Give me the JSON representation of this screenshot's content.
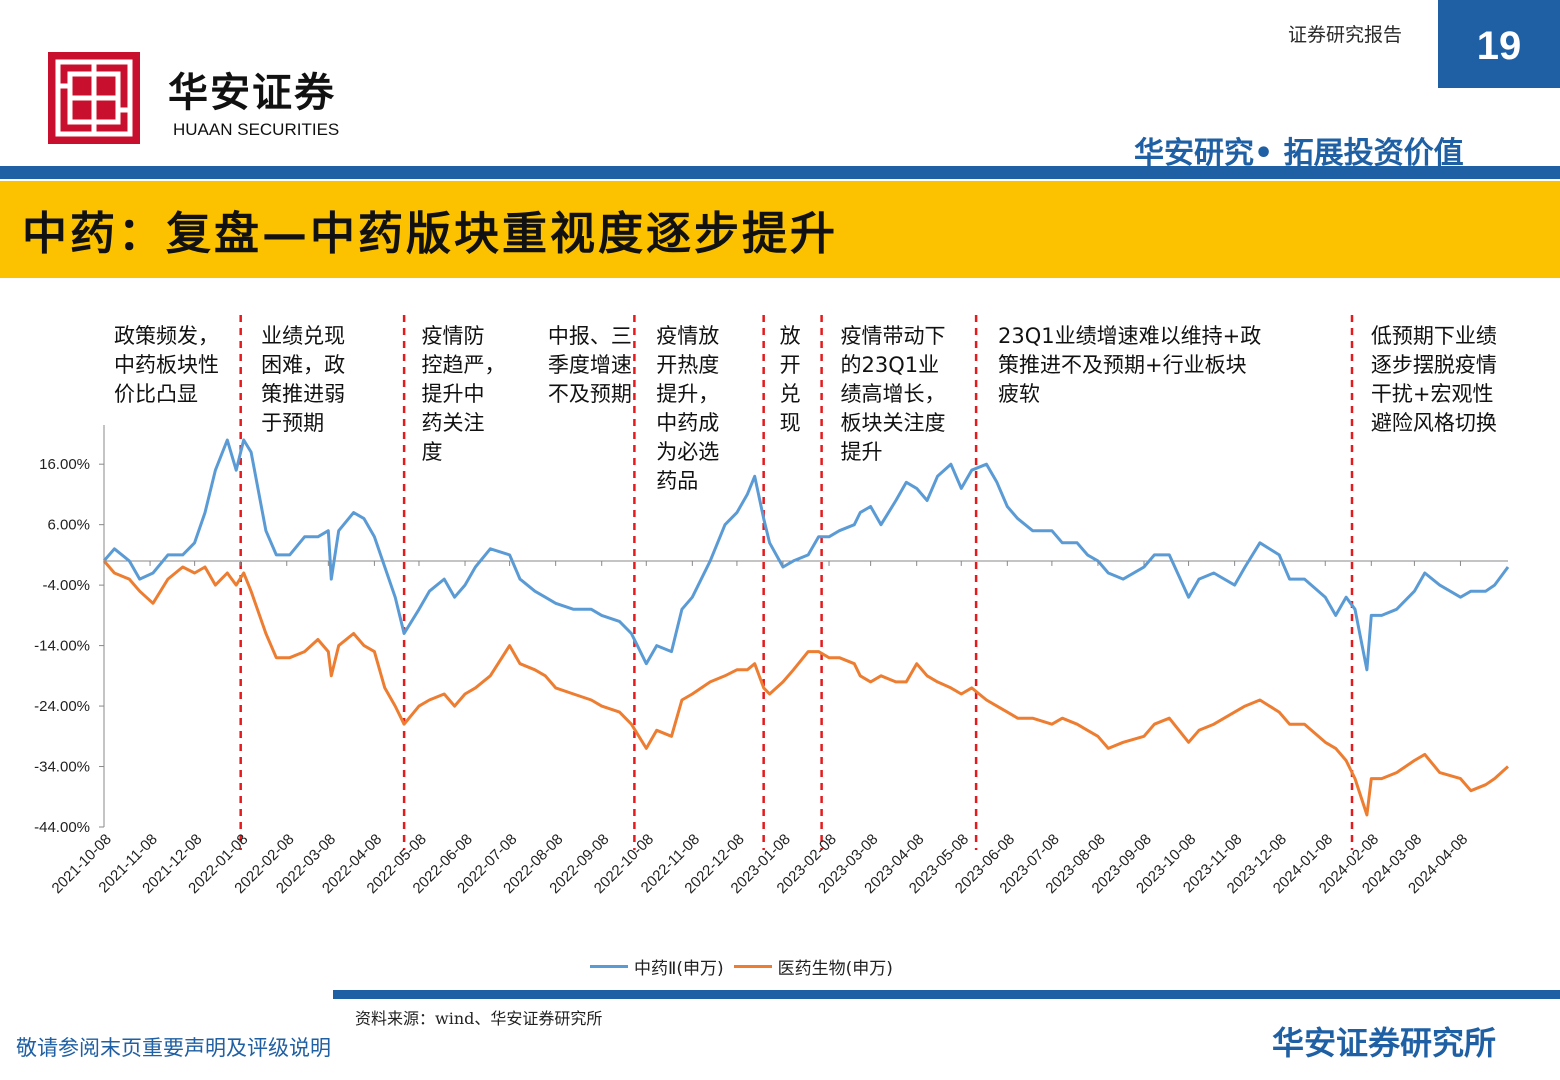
{
  "header": {
    "logo_cn": "华安证券",
    "logo_en": "HUAAN SECURITIES",
    "report_type": "证券研究报告",
    "page_number": "19",
    "slogan": "华安研究• 拓展投资价值",
    "brand_color": "#1f5fa3",
    "logo_color": "#c8102e",
    "title_bar_color": "#fcc200"
  },
  "page_title": "中药：复盘—中药版块重视度逐步提升",
  "footer": {
    "source": "资料来源：wind、华安证券研究所",
    "disclaimer": "敬请参阅末页重要声明及评级说明",
    "institute": "华安证券研究所"
  },
  "chart_data": {
    "type": "line",
    "ylim": [
      -44,
      20
    ],
    "y_ticks": [
      "16.00%",
      "6.00%",
      "-4.00%",
      "-14.00%",
      "-24.00%",
      "-34.00%",
      "-44.00%"
    ],
    "x_ticks": [
      "2021-10-08",
      "2021-11-08",
      "2021-12-08",
      "2022-01-08",
      "2022-02-08",
      "2022-03-08",
      "2022-04-08",
      "2022-05-08",
      "2022-06-08",
      "2022-07-08",
      "2022-08-08",
      "2022-09-08",
      "2022-10-08",
      "2022-11-08",
      "2022-12-08",
      "2023-01-08",
      "2023-02-08",
      "2023-03-08",
      "2023-04-08",
      "2023-05-08",
      "2023-06-08",
      "2023-07-08",
      "2023-08-08",
      "2023-09-08",
      "2023-10-08",
      "2023-11-08",
      "2023-12-08",
      "2024-01-08",
      "2024-02-08",
      "2024-03-08",
      "2024-04-08"
    ],
    "x_range": [
      "2021-10-08",
      "2024-05-10"
    ],
    "series": [
      {
        "name": "中药Ⅱ(申万)",
        "color": "#5b9bd5",
        "points": [
          [
            "2021-10-08",
            0
          ],
          [
            "2021-10-15",
            2
          ],
          [
            "2021-10-25",
            0
          ],
          [
            "2021-11-01",
            -3
          ],
          [
            "2021-11-10",
            -2
          ],
          [
            "2021-11-20",
            1
          ],
          [
            "2021-11-30",
            1
          ],
          [
            "2021-12-08",
            3
          ],
          [
            "2021-12-15",
            8
          ],
          [
            "2021-12-22",
            15
          ],
          [
            "2021-12-30",
            20
          ],
          [
            "2022-01-05",
            15
          ],
          [
            "2022-01-10",
            20
          ],
          [
            "2022-01-15",
            18
          ],
          [
            "2022-01-25",
            5
          ],
          [
            "2022-02-01",
            1
          ],
          [
            "2022-02-10",
            1
          ],
          [
            "2022-02-20",
            4
          ],
          [
            "2022-03-01",
            4
          ],
          [
            "2022-03-08",
            5
          ],
          [
            "2022-03-10",
            -3
          ],
          [
            "2022-03-15",
            5
          ],
          [
            "2022-03-25",
            8
          ],
          [
            "2022-04-01",
            7
          ],
          [
            "2022-04-08",
            4
          ],
          [
            "2022-04-15",
            -1
          ],
          [
            "2022-04-22",
            -6
          ],
          [
            "2022-04-28",
            -12
          ],
          [
            "2022-05-08",
            -8
          ],
          [
            "2022-05-15",
            -5
          ],
          [
            "2022-05-25",
            -3
          ],
          [
            "2022-06-01",
            -6
          ],
          [
            "2022-06-08",
            -4
          ],
          [
            "2022-06-15",
            -1
          ],
          [
            "2022-06-25",
            2
          ],
          [
            "2022-07-08",
            1
          ],
          [
            "2022-07-15",
            -3
          ],
          [
            "2022-07-25",
            -5
          ],
          [
            "2022-08-01",
            -6
          ],
          [
            "2022-08-08",
            -7
          ],
          [
            "2022-08-20",
            -8
          ],
          [
            "2022-09-01",
            -8
          ],
          [
            "2022-09-08",
            -9
          ],
          [
            "2022-09-20",
            -10
          ],
          [
            "2022-09-28",
            -12
          ],
          [
            "2022-10-08",
            -17
          ],
          [
            "2022-10-15",
            -14
          ],
          [
            "2022-10-25",
            -15
          ],
          [
            "2022-11-01",
            -8
          ],
          [
            "2022-11-08",
            -6
          ],
          [
            "2022-11-20",
            0
          ],
          [
            "2022-11-30",
            6
          ],
          [
            "2022-12-08",
            8
          ],
          [
            "2022-12-15",
            11
          ],
          [
            "2022-12-20",
            14
          ],
          [
            "2022-12-26",
            7
          ],
          [
            "2022-12-30",
            3
          ],
          [
            "2023-01-08",
            -1
          ],
          [
            "2023-01-15",
            0
          ],
          [
            "2023-01-25",
            1
          ],
          [
            "2023-02-01",
            4
          ],
          [
            "2023-02-08",
            4
          ],
          [
            "2023-02-15",
            5
          ],
          [
            "2023-02-25",
            6
          ],
          [
            "2023-03-01",
            8
          ],
          [
            "2023-03-08",
            9
          ],
          [
            "2023-03-15",
            6
          ],
          [
            "2023-03-25",
            10
          ],
          [
            "2023-04-01",
            13
          ],
          [
            "2023-04-08",
            12
          ],
          [
            "2023-04-15",
            10
          ],
          [
            "2023-04-22",
            14
          ],
          [
            "2023-05-01",
            16
          ],
          [
            "2023-05-08",
            12
          ],
          [
            "2023-05-15",
            15
          ],
          [
            "2023-05-25",
            16
          ],
          [
            "2023-06-01",
            13
          ],
          [
            "2023-06-08",
            9
          ],
          [
            "2023-06-15",
            7
          ],
          [
            "2023-06-25",
            5
          ],
          [
            "2023-07-08",
            5
          ],
          [
            "2023-07-15",
            3
          ],
          [
            "2023-07-25",
            3
          ],
          [
            "2023-08-01",
            1
          ],
          [
            "2023-08-08",
            0
          ],
          [
            "2023-08-15",
            -2
          ],
          [
            "2023-08-25",
            -3
          ],
          [
            "2023-09-08",
            -1
          ],
          [
            "2023-09-15",
            1
          ],
          [
            "2023-09-25",
            1
          ],
          [
            "2023-10-08",
            -6
          ],
          [
            "2023-10-15",
            -3
          ],
          [
            "2023-10-25",
            -2
          ],
          [
            "2023-11-08",
            -4
          ],
          [
            "2023-11-15",
            -1
          ],
          [
            "2023-11-25",
            3
          ],
          [
            "2023-12-08",
            1
          ],
          [
            "2023-12-15",
            -3
          ],
          [
            "2023-12-25",
            -3
          ],
          [
            "2024-01-08",
            -6
          ],
          [
            "2024-01-15",
            -9
          ],
          [
            "2024-01-22",
            -6
          ],
          [
            "2024-01-28",
            -8
          ],
          [
            "2024-02-05",
            -18
          ],
          [
            "2024-02-08",
            -9
          ],
          [
            "2024-02-15",
            -9
          ],
          [
            "2024-02-25",
            -8
          ],
          [
            "2024-03-08",
            -5
          ],
          [
            "2024-03-15",
            -2
          ],
          [
            "2024-03-25",
            -4
          ],
          [
            "2024-04-08",
            -6
          ],
          [
            "2024-04-15",
            -5
          ],
          [
            "2024-04-25",
            -5
          ],
          [
            "2024-05-01",
            -4
          ],
          [
            "2024-05-10",
            -1
          ]
        ]
      },
      {
        "name": "医药生物(申万)",
        "color": "#ed7d31",
        "points": [
          [
            "2021-10-08",
            0
          ],
          [
            "2021-10-15",
            -2
          ],
          [
            "2021-10-25",
            -3
          ],
          [
            "2021-11-01",
            -5
          ],
          [
            "2021-11-10",
            -7
          ],
          [
            "2021-11-20",
            -3
          ],
          [
            "2021-11-30",
            -1
          ],
          [
            "2021-12-08",
            -2
          ],
          [
            "2021-12-15",
            -1
          ],
          [
            "2021-12-22",
            -4
          ],
          [
            "2021-12-30",
            -2
          ],
          [
            "2022-01-05",
            -4
          ],
          [
            "2022-01-10",
            -2
          ],
          [
            "2022-01-15",
            -5
          ],
          [
            "2022-01-25",
            -12
          ],
          [
            "2022-02-01",
            -16
          ],
          [
            "2022-02-10",
            -16
          ],
          [
            "2022-02-20",
            -15
          ],
          [
            "2022-03-01",
            -13
          ],
          [
            "2022-03-08",
            -15
          ],
          [
            "2022-03-10",
            -19
          ],
          [
            "2022-03-15",
            -14
          ],
          [
            "2022-03-25",
            -12
          ],
          [
            "2022-04-01",
            -14
          ],
          [
            "2022-04-08",
            -15
          ],
          [
            "2022-04-15",
            -21
          ],
          [
            "2022-04-22",
            -24
          ],
          [
            "2022-04-28",
            -27
          ],
          [
            "2022-05-08",
            -24
          ],
          [
            "2022-05-15",
            -23
          ],
          [
            "2022-05-25",
            -22
          ],
          [
            "2022-06-01",
            -24
          ],
          [
            "2022-06-08",
            -22
          ],
          [
            "2022-06-15",
            -21
          ],
          [
            "2022-06-25",
            -19
          ],
          [
            "2022-07-08",
            -14
          ],
          [
            "2022-07-15",
            -17
          ],
          [
            "2022-07-25",
            -18
          ],
          [
            "2022-08-01",
            -19
          ],
          [
            "2022-08-08",
            -21
          ],
          [
            "2022-08-20",
            -22
          ],
          [
            "2022-09-01",
            -23
          ],
          [
            "2022-09-08",
            -24
          ],
          [
            "2022-09-20",
            -25
          ],
          [
            "2022-09-28",
            -27
          ],
          [
            "2022-10-08",
            -31
          ],
          [
            "2022-10-15",
            -28
          ],
          [
            "2022-10-25",
            -29
          ],
          [
            "2022-11-01",
            -23
          ],
          [
            "2022-11-08",
            -22
          ],
          [
            "2022-11-20",
            -20
          ],
          [
            "2022-11-30",
            -19
          ],
          [
            "2022-12-08",
            -18
          ],
          [
            "2022-12-15",
            -18
          ],
          [
            "2022-12-20",
            -17
          ],
          [
            "2022-12-26",
            -21
          ],
          [
            "2022-12-30",
            -22
          ],
          [
            "2023-01-08",
            -20
          ],
          [
            "2023-01-15",
            -18
          ],
          [
            "2023-01-25",
            -15
          ],
          [
            "2023-02-01",
            -15
          ],
          [
            "2023-02-08",
            -16
          ],
          [
            "2023-02-15",
            -16
          ],
          [
            "2023-02-25",
            -17
          ],
          [
            "2023-03-01",
            -19
          ],
          [
            "2023-03-08",
            -20
          ],
          [
            "2023-03-15",
            -19
          ],
          [
            "2023-03-25",
            -20
          ],
          [
            "2023-04-01",
            -20
          ],
          [
            "2023-04-08",
            -17
          ],
          [
            "2023-04-15",
            -19
          ],
          [
            "2023-04-22",
            -20
          ],
          [
            "2023-05-01",
            -21
          ],
          [
            "2023-05-08",
            -22
          ],
          [
            "2023-05-15",
            -21
          ],
          [
            "2023-05-25",
            -23
          ],
          [
            "2023-06-01",
            -24
          ],
          [
            "2023-06-08",
            -25
          ],
          [
            "2023-06-15",
            -26
          ],
          [
            "2023-06-25",
            -26
          ],
          [
            "2023-07-08",
            -27
          ],
          [
            "2023-07-15",
            -26
          ],
          [
            "2023-07-25",
            -27
          ],
          [
            "2023-08-01",
            -28
          ],
          [
            "2023-08-08",
            -29
          ],
          [
            "2023-08-15",
            -31
          ],
          [
            "2023-08-25",
            -30
          ],
          [
            "2023-09-08",
            -29
          ],
          [
            "2023-09-15",
            -27
          ],
          [
            "2023-09-25",
            -26
          ],
          [
            "2023-10-08",
            -30
          ],
          [
            "2023-10-15",
            -28
          ],
          [
            "2023-10-25",
            -27
          ],
          [
            "2023-11-08",
            -25
          ],
          [
            "2023-11-15",
            -24
          ],
          [
            "2023-11-25",
            -23
          ],
          [
            "2023-12-08",
            -25
          ],
          [
            "2023-12-15",
            -27
          ],
          [
            "2023-12-25",
            -27
          ],
          [
            "2024-01-08",
            -30
          ],
          [
            "2024-01-15",
            -31
          ],
          [
            "2024-01-22",
            -33
          ],
          [
            "2024-01-28",
            -36
          ],
          [
            "2024-02-05",
            -42
          ],
          [
            "2024-02-08",
            -36
          ],
          [
            "2024-02-15",
            -36
          ],
          [
            "2024-02-25",
            -35
          ],
          [
            "2024-03-08",
            -33
          ],
          [
            "2024-03-15",
            -32
          ],
          [
            "2024-03-25",
            -35
          ],
          [
            "2024-04-08",
            -36
          ],
          [
            "2024-04-15",
            -38
          ],
          [
            "2024-04-25",
            -37
          ],
          [
            "2024-05-01",
            -36
          ],
          [
            "2024-05-10",
            -34
          ]
        ]
      }
    ],
    "event_lines": [
      "2022-01-08",
      "2022-04-28",
      "2022-09-30",
      "2022-12-26",
      "2023-02-03",
      "2023-05-18",
      "2024-01-26"
    ],
    "event_line_color": "#e41a1c",
    "annotations": [
      {
        "date": "2021-10-08",
        "lines": [
          "政策频发，",
          "中药板块性",
          "价比凸显"
        ]
      },
      {
        "date": "2022-01-15",
        "lines": [
          "业绩兑现",
          "困难，政",
          "策推进弱",
          "于预期"
        ]
      },
      {
        "date": "2022-05-03",
        "lines": [
          "疫情防",
          "控趋严，",
          "提升中",
          "药关注",
          "度"
        ]
      },
      {
        "date": "2022-07-27",
        "lines": [
          "中报、三",
          "季度增速",
          "不及预期"
        ]
      },
      {
        "date": "2022-10-08",
        "lines": [
          "疫情放",
          "开热度",
          "提升，",
          "中药成",
          "为必选",
          "药品"
        ]
      },
      {
        "date": "2022-12-30",
        "lines": [
          "放",
          "开",
          "兑",
          "现"
        ]
      },
      {
        "date": "2023-02-09",
        "lines": [
          "疫情带动下",
          "的23Q1业",
          "绩高增长，",
          "板块关注度",
          "提升"
        ]
      },
      {
        "date": "2023-05-26",
        "lines": [
          "23Q1业绩增速难以维持+政",
          "策推进不及预期+行业板块",
          "疲软"
        ]
      },
      {
        "date": "2024-02-01",
        "lines": [
          "低预期下业绩",
          "逐步摆脱疫情",
          "干扰+宏观性",
          "避险风格切换"
        ]
      }
    ]
  }
}
